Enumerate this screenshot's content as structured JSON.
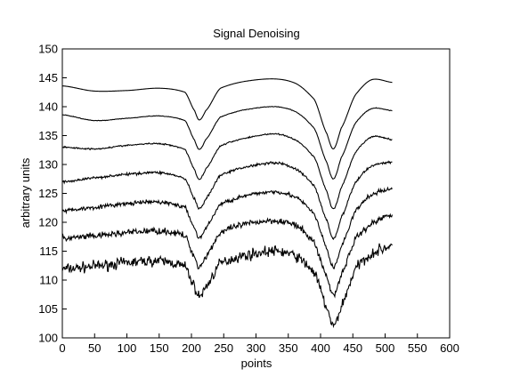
{
  "chart_data": {
    "type": "line",
    "title": "Signal Denoising",
    "xlabel": "points",
    "ylabel": "arbitrary units",
    "xlim": [
      0,
      600
    ],
    "ylim": [
      100,
      150
    ],
    "xticks": [
      0,
      50,
      100,
      150,
      200,
      250,
      300,
      350,
      400,
      450,
      500,
      550,
      600
    ],
    "yticks": [
      100,
      105,
      110,
      115,
      120,
      125,
      130,
      135,
      140,
      145,
      150
    ],
    "grid": false,
    "legend": "none",
    "line_color": "#000000",
    "n_points": 512,
    "series": [
      {
        "offset": 111.5,
        "noise": 0.9,
        "x": [
          0,
          50,
          100,
          150,
          190,
          205,
          212,
          222,
          245,
          290,
          330,
          360,
          390,
          410,
          420,
          432,
          455,
          480,
          512
        ],
        "y": [
          111.9,
          112.4,
          113.0,
          113.3,
          112.3,
          108.8,
          107.2,
          108.8,
          112.9,
          114.4,
          115.0,
          114.2,
          111.3,
          105.2,
          102.0,
          105.5,
          112.0,
          114.6,
          116.0
        ]
      },
      {
        "offset": 117.5,
        "noise": 0.55,
        "x": [
          0,
          50,
          100,
          150,
          190,
          205,
          212,
          222,
          245,
          290,
          330,
          360,
          390,
          410,
          420,
          432,
          455,
          480,
          512
        ],
        "y": [
          117.2,
          117.6,
          118.2,
          118.5,
          117.6,
          114.0,
          112.3,
          114.1,
          118.2,
          119.8,
          120.3,
          119.5,
          116.5,
          110.5,
          107.5,
          111.0,
          117.2,
          119.8,
          121.5
        ]
      },
      {
        "offset": 122.5,
        "noise": 0.35,
        "x": [
          0,
          50,
          100,
          150,
          190,
          205,
          212,
          222,
          245,
          290,
          330,
          360,
          390,
          410,
          420,
          432,
          455,
          480,
          512
        ],
        "y": [
          122.0,
          122.6,
          123.2,
          123.5,
          122.5,
          119.0,
          117.3,
          119.0,
          123.1,
          124.7,
          125.3,
          124.4,
          121.4,
          115.4,
          112.2,
          115.8,
          122.0,
          124.8,
          125.8
        ]
      },
      {
        "offset": 127.5,
        "noise": 0.22,
        "x": [
          0,
          50,
          100,
          150,
          190,
          205,
          212,
          222,
          245,
          290,
          330,
          360,
          390,
          410,
          420,
          432,
          455,
          480,
          512
        ],
        "y": [
          127.0,
          127.7,
          128.3,
          128.6,
          127.5,
          124.0,
          122.3,
          124.0,
          128.1,
          129.7,
          130.3,
          129.3,
          126.3,
          120.3,
          117.2,
          120.8,
          127.0,
          129.8,
          130.4
        ]
      },
      {
        "offset": 132.5,
        "noise": 0.12,
        "x": [
          0,
          50,
          100,
          150,
          190,
          205,
          212,
          222,
          245,
          290,
          330,
          360,
          390,
          410,
          420,
          432,
          455,
          480,
          512
        ],
        "y": [
          133.0,
          132.7,
          133.3,
          133.6,
          132.6,
          129.1,
          127.4,
          129.2,
          133.2,
          134.7,
          135.3,
          134.3,
          131.3,
          125.3,
          122.3,
          126.0,
          132.2,
          134.8,
          134.3
        ]
      },
      {
        "offset": 137.5,
        "noise": 0.05,
        "x": [
          0,
          50,
          100,
          150,
          190,
          205,
          212,
          222,
          245,
          290,
          330,
          360,
          390,
          410,
          420,
          432,
          455,
          480,
          512
        ],
        "y": [
          138.6,
          137.6,
          138.0,
          138.4,
          137.6,
          134.2,
          132.6,
          134.3,
          138.2,
          139.6,
          140.0,
          139.2,
          136.3,
          130.3,
          127.5,
          131.2,
          137.3,
          139.7,
          139.3
        ]
      },
      {
        "offset": 142.5,
        "noise": 0.0,
        "x": [
          0,
          50,
          100,
          150,
          190,
          205,
          212,
          222,
          245,
          290,
          330,
          360,
          390,
          410,
          420,
          432,
          455,
          480,
          512
        ],
        "y": [
          143.6,
          142.7,
          142.8,
          143.2,
          142.5,
          139.3,
          137.7,
          139.3,
          143.2,
          144.5,
          144.8,
          144.1,
          141.3,
          135.3,
          132.7,
          136.3,
          142.2,
          144.7,
          144.2
        ]
      }
    ]
  }
}
